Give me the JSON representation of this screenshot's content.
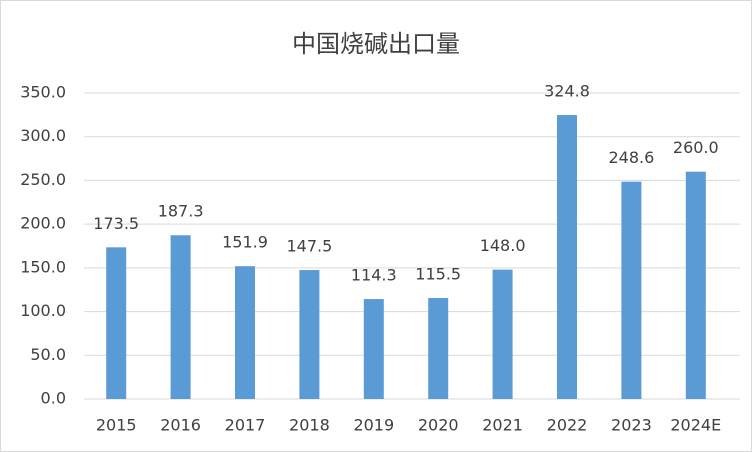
{
  "chart_data": {
    "type": "bar",
    "title": "中国烧碱出口量",
    "categories": [
      "2015",
      "2016",
      "2017",
      "2018",
      "2019",
      "2020",
      "2021",
      "2022",
      "2023",
      "2024E"
    ],
    "values": [
      173.5,
      187.3,
      151.9,
      147.5,
      114.3,
      115.5,
      148.0,
      324.8,
      248.6,
      260.0
    ],
    "value_labels": [
      "173.5",
      "187.3",
      "151.9",
      "147.5",
      "114.3",
      "115.5",
      "148.0",
      "324.8",
      "248.6",
      "260.0"
    ],
    "color": "#5b9bd5",
    "ylim": [
      0,
      350
    ],
    "yticks": [
      {
        "value": 0,
        "label": "0.0"
      },
      {
        "value": 50,
        "label": "50.0"
      },
      {
        "value": 100,
        "label": "100.0"
      },
      {
        "value": 150,
        "label": "150.0"
      },
      {
        "value": 200,
        "label": "200.0"
      },
      {
        "value": 250,
        "label": "250.0"
      },
      {
        "value": 300,
        "label": "300.0"
      },
      {
        "value": 350,
        "label": "350.0"
      }
    ],
    "grid": true
  }
}
